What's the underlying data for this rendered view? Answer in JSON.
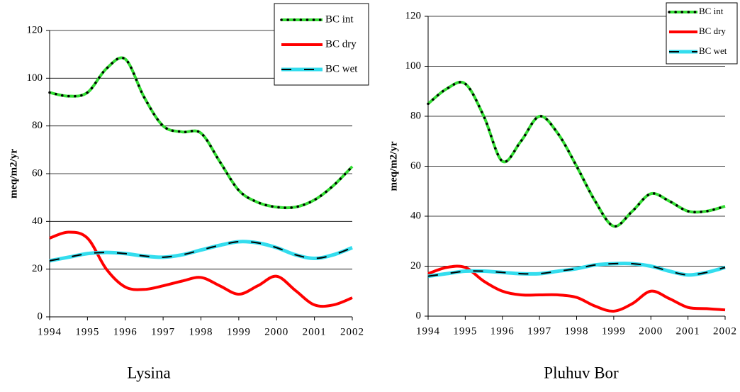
{
  "chart_data": [
    {
      "type": "line",
      "title": "Lysina",
      "y_label": "meq/m2/yr",
      "x": [
        1994,
        1994.5,
        1995,
        1995.5,
        1996,
        1996.5,
        1997,
        1997.5,
        1998,
        1998.5,
        1999,
        1999.5,
        2000,
        2000.5,
        2001,
        2001.5,
        2002
      ],
      "xlim": [
        1994,
        2002
      ],
      "xticks": [
        1994,
        1995,
        1996,
        1997,
        1998,
        1999,
        2000,
        2001,
        2002
      ],
      "ylim": [
        0,
        120
      ],
      "yticks": [
        0,
        20,
        40,
        60,
        80,
        100,
        120
      ],
      "grid": true,
      "legend": "upper right",
      "series": [
        {
          "name": "BC int",
          "color": "#33dd33",
          "values": [
            94,
            92.5,
            94,
            104,
            108,
            92,
            80,
            77.5,
            77,
            65,
            53,
            48,
            46,
            46,
            49,
            55,
            63
          ]
        },
        {
          "name": "BC dry",
          "color": "#ff0000",
          "values": [
            33,
            35.5,
            33,
            20,
            12.5,
            11.5,
            13,
            15,
            16.5,
            13,
            9.5,
            13,
            17,
            11,
            5,
            5,
            8
          ]
        },
        {
          "name": "BC wet",
          "color": "#33ddee",
          "values": [
            23.5,
            25,
            26.5,
            27,
            26.5,
            25.5,
            25,
            26,
            28,
            30,
            31.5,
            31,
            29,
            26,
            24.5,
            26,
            29
          ]
        }
      ]
    },
    {
      "type": "line",
      "title": "Pluhuv Bor",
      "y_label": "meq/m2/yr",
      "x": [
        1994,
        1994.5,
        1995,
        1995.5,
        1996,
        1996.5,
        1997,
        1997.5,
        1998,
        1998.5,
        1999,
        1999.5,
        2000,
        2000.5,
        2001,
        2001.5,
        2002
      ],
      "xlim": [
        1994,
        2002
      ],
      "xticks": [
        1994,
        1995,
        1996,
        1997,
        1998,
        1999,
        2000,
        2001,
        2002
      ],
      "ylim": [
        0,
        120
      ],
      "yticks": [
        0,
        20,
        40,
        60,
        80,
        100,
        120
      ],
      "grid": true,
      "legend": "upper right",
      "series": [
        {
          "name": "BC int",
          "color": "#33dd33",
          "values": [
            85,
            91,
            93,
            80,
            62,
            70,
            80,
            73,
            60,
            46,
            36,
            42,
            49,
            46,
            42,
            42,
            44
          ]
        },
        {
          "name": "BC dry",
          "color": "#ff0000",
          "values": [
            17,
            19.5,
            19.5,
            14,
            10,
            8.5,
            8.5,
            8.5,
            7.5,
            4,
            2,
            5,
            10,
            7,
            3.5,
            3,
            2.5
          ]
        },
        {
          "name": "BC wet",
          "color": "#33ddee",
          "values": [
            16,
            17,
            18,
            18,
            17.5,
            17,
            17,
            18,
            19,
            20.5,
            21,
            21,
            20,
            18,
            16.5,
            17.5,
            19.5
          ]
        }
      ]
    }
  ]
}
